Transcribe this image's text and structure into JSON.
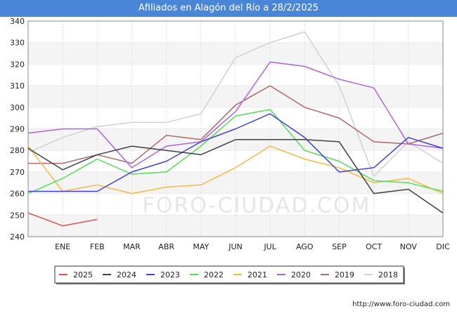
{
  "header": {
    "title": "Afiliados en Alagón del Río a 28/2/2025"
  },
  "source_text": "http://www.foro-ciudad.com",
  "watermark_text": "FORO-CIUDAD.COM",
  "chart_data": {
    "type": "line",
    "title": "Afiliados en Alagón del Río a 28/2/2025",
    "xlabel": "",
    "ylabel": "",
    "categories": [
      "",
      "ENE",
      "FEB",
      "MAR",
      "ABR",
      "MAY",
      "JUN",
      "JUL",
      "AGO",
      "SEP",
      "OCT",
      "NOV",
      "DIC"
    ],
    "ylim": [
      240,
      340
    ],
    "yticks": [
      240,
      250,
      260,
      270,
      280,
      290,
      300,
      310,
      320,
      330,
      340
    ],
    "grid": true,
    "legend_position": "bottom",
    "series": [
      {
        "name": "2025",
        "color": "#e05050",
        "values": [
          251,
          245,
          248,
          null,
          null,
          null,
          null,
          null,
          null,
          null,
          null,
          null,
          null
        ]
      },
      {
        "name": "2024",
        "color": "#404040",
        "values": [
          281,
          271,
          278,
          282,
          280,
          278,
          285,
          285,
          285,
          284,
          260,
          262,
          251
        ]
      },
      {
        "name": "2023",
        "color": "#4040e0",
        "values": [
          261,
          261,
          261,
          270,
          275,
          284,
          290,
          297,
          286,
          270,
          272,
          286,
          281
        ]
      },
      {
        "name": "2022",
        "color": "#50e050",
        "values": [
          260,
          267,
          276,
          269,
          270,
          282,
          296,
          299,
          280,
          275,
          266,
          265,
          261
        ]
      },
      {
        "name": "2021",
        "color": "#f8b840",
        "values": [
          282,
          261,
          264,
          260,
          263,
          264,
          272,
          282,
          276,
          272,
          265,
          267,
          260
        ]
      },
      {
        "name": "2020",
        "color": "#b060e8",
        "values": [
          288,
          290,
          290,
          272,
          282,
          284,
          298,
          321,
          319,
          313,
          309,
          283,
          281
        ]
      },
      {
        "name": "2019",
        "color": "#b06868",
        "values": [
          274,
          274,
          278,
          274,
          287,
          285,
          301,
          310,
          300,
          295,
          284,
          283,
          288
        ]
      },
      {
        "name": "2018",
        "color": "#d0d0d0",
        "values": [
          279,
          286,
          291,
          293,
          293,
          297,
          323,
          330,
          335,
          310,
          268,
          284,
          274
        ]
      }
    ]
  }
}
